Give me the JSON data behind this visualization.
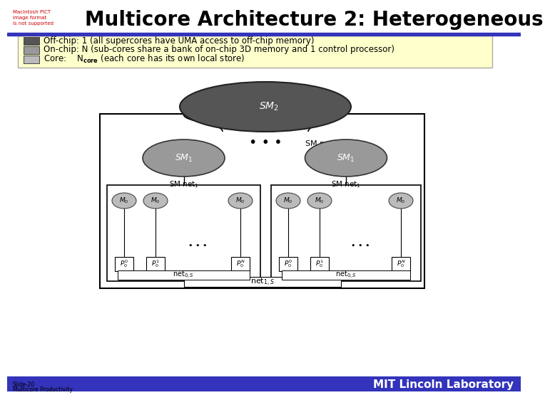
{
  "title": "Multicore Architecture 2: Heterogeneous",
  "legend_bg": "#ffffcc",
  "bg_color": "#ffffff",
  "blue_bar_color": "#3333bb",
  "footer_blue": "#3333bb",
  "footer_text": "MIT Lincoln Laboratory",
  "slide_label": "Slide-20\nMulticore Productivity",
  "off_chip_color": "#555555",
  "on_chip_color": "#999999",
  "core_color": "#bbbbbb",
  "title_fontsize": 20,
  "legend_fontsize": 8.5
}
